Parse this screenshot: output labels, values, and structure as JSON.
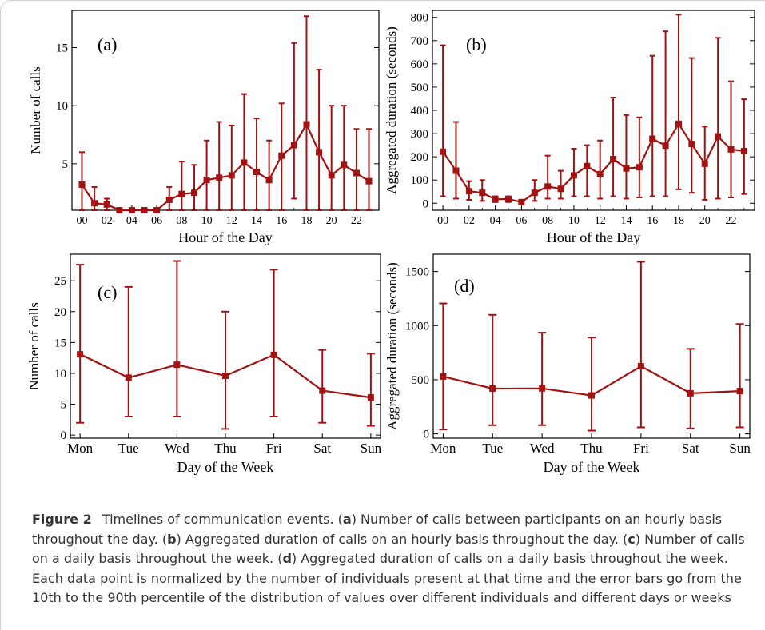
{
  "colors": {
    "series": "#a31111",
    "axis": "#000000",
    "caption_text": "#333333"
  },
  "chart_data": [
    {
      "id": "a",
      "type": "line",
      "panel_label": "(a)",
      "xlabel": "Hour of the Day",
      "ylabel": "Number of calls",
      "x": [
        0,
        1,
        2,
        3,
        4,
        5,
        6,
        7,
        8,
        9,
        10,
        11,
        12,
        13,
        14,
        15,
        16,
        17,
        18,
        19,
        20,
        21,
        22,
        23
      ],
      "xticks": [
        0,
        2,
        4,
        6,
        8,
        10,
        12,
        14,
        16,
        18,
        20,
        22
      ],
      "xtick_labels": [
        "00",
        "02",
        "04",
        "06",
        "08",
        "10",
        "12",
        "14",
        "16",
        "18",
        "20",
        "22"
      ],
      "xlim": [
        -0.8,
        23.8
      ],
      "yticks": [
        5,
        10,
        15
      ],
      "ylim": [
        1,
        18.2
      ],
      "values": [
        3.2,
        1.6,
        1.5,
        1.0,
        1.0,
        1.0,
        1.0,
        1.9,
        2.4,
        2.5,
        3.6,
        3.8,
        4.0,
        5.1,
        4.3,
        3.6,
        5.7,
        6.6,
        8.4,
        6.0,
        4.0,
        4.9,
        4.2,
        3.5
      ],
      "err_low": [
        1,
        1,
        1,
        1,
        1,
        1,
        1,
        1,
        1,
        1,
        1,
        1,
        1,
        1,
        1,
        1,
        1,
        2,
        1,
        1,
        1,
        1,
        1,
        1
      ],
      "err_high": [
        6.0,
        3.0,
        2.0,
        1.0,
        1.0,
        1.0,
        1.0,
        3.0,
        5.2,
        4.9,
        7.0,
        8.6,
        8.3,
        11.0,
        8.9,
        7.0,
        10.2,
        15.4,
        17.7,
        13.1,
        10.0,
        10.0,
        8.0,
        8.0
      ]
    },
    {
      "id": "b",
      "type": "line",
      "panel_label": "(b)",
      "xlabel": "Hour of the Day",
      "ylabel": "Aggregated duration (seconds)",
      "x": [
        0,
        1,
        2,
        3,
        4,
        5,
        6,
        7,
        8,
        9,
        10,
        11,
        12,
        13,
        14,
        15,
        16,
        17,
        18,
        19,
        20,
        21,
        22,
        23
      ],
      "xticks": [
        0,
        2,
        4,
        6,
        8,
        10,
        12,
        14,
        16,
        18,
        20,
        22
      ],
      "xtick_labels": [
        "00",
        "02",
        "04",
        "06",
        "08",
        "10",
        "12",
        "14",
        "16",
        "18",
        "20",
        "22"
      ],
      "xlim": [
        -0.8,
        23.8
      ],
      "yticks": [
        0,
        100,
        200,
        300,
        400,
        500,
        600,
        700,
        800
      ],
      "ylim": [
        -30,
        830
      ],
      "values": [
        222,
        140,
        52,
        45,
        17,
        18,
        5,
        45,
        72,
        62,
        120,
        160,
        125,
        190,
        150,
        155,
        278,
        248,
        342,
        255,
        170,
        288,
        232,
        225
      ],
      "err_low": [
        30,
        20,
        15,
        10,
        5,
        5,
        0,
        10,
        20,
        20,
        30,
        30,
        20,
        30,
        20,
        25,
        30,
        30,
        60,
        45,
        15,
        20,
        25,
        40
      ],
      "err_high": [
        680,
        350,
        95,
        100,
        30,
        30,
        15,
        100,
        205,
        140,
        235,
        250,
        270,
        455,
        380,
        370,
        635,
        740,
        812,
        625,
        330,
        712,
        525,
        448
      ]
    },
    {
      "id": "c",
      "type": "line",
      "panel_label": "(c)",
      "xlabel": "Day of the Week",
      "ylabel": "Number of calls",
      "categories": [
        "Mon",
        "Tue",
        "Wed",
        "Thu",
        "Fri",
        "Sat",
        "Sun"
      ],
      "xlim": [
        -0.2,
        6.2
      ],
      "yticks": [
        0,
        5,
        10,
        15,
        20,
        25
      ],
      "ylim": [
        -0.5,
        29.3
      ],
      "values": [
        13.1,
        9.3,
        11.4,
        9.6,
        13.0,
        7.2,
        6.1
      ],
      "err_low": [
        2.0,
        3.0,
        3.0,
        1.0,
        3.0,
        2.0,
        1.5
      ],
      "err_high": [
        27.6,
        24.0,
        28.2,
        20.0,
        26.8,
        13.8,
        13.2
      ]
    },
    {
      "id": "d",
      "type": "line",
      "panel_label": "(d)",
      "xlabel": "Day of the Week",
      "ylabel": "Aggregated duration (seconds)",
      "categories": [
        "Mon",
        "Tue",
        "Wed",
        "Thu",
        "Fri",
        "Sat",
        "Sun"
      ],
      "xlim": [
        -0.2,
        6.2
      ],
      "yticks": [
        0,
        500,
        1000,
        1500
      ],
      "ylim": [
        -40,
        1660
      ],
      "values": [
        530,
        418,
        420,
        355,
        625,
        375,
        395
      ],
      "err_low": [
        40,
        80,
        80,
        30,
        60,
        50,
        60
      ],
      "err_high": [
        1205,
        1100,
        935,
        890,
        1590,
        785,
        1015
      ]
    }
  ],
  "caption": {
    "figure_label": "Figure 2",
    "t1": " Timelines of communication events. (",
    "a": "a",
    "t2": ") Number of calls between participants on an hourly basis throughout the day. (",
    "b": "b",
    "t3": ") Aggregated duration of calls on an hourly basis throughout the day. (",
    "c": "c",
    "t4": ") Number of calls on a daily basis throughout the week. (",
    "d": "d",
    "t5": ") Aggregated duration of calls on a daily basis throughout the week. Each data point is normalized by the number of individuals present at that time and the error bars go from the 10th to the 90th percentile of the distribution of values over different individuals and different days or weeks"
  }
}
